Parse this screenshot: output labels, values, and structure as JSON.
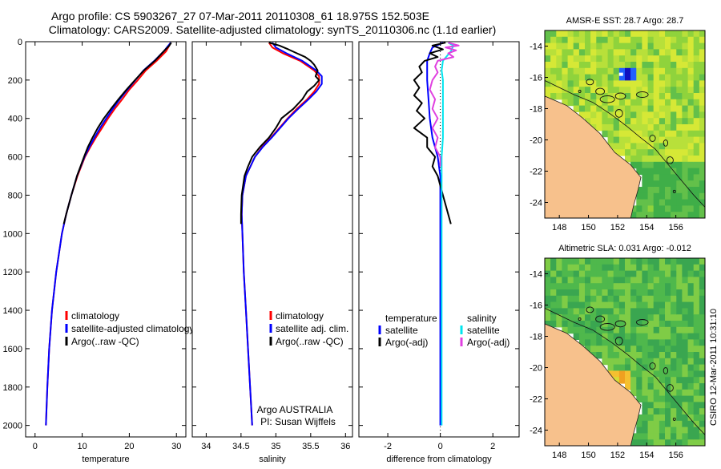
{
  "header": {
    "line1": "Argo profile: CS 5903267_27 07-Mar-2011 20110308_61 18.975S 152.503E",
    "line2": "Climatology: CARS2009. Satellite-adjusted climatology: synTS_20110306.nc (1.1d earlier)"
  },
  "credit": "CSIRO 12-Mar-2011 10:31:10",
  "colors": {
    "climatology": "#ff0000",
    "satellite": "#0000ff",
    "argo": "#000000",
    "sat_sal": "#00e5ee",
    "argo_adj_sal": "#e040e0",
    "land": "#f7c18c"
  },
  "chart_data": [
    {
      "type": "line",
      "id": "temperature-profile",
      "xlabel": "temperature",
      "ylabel": "",
      "xlim": [
        -2,
        32
      ],
      "ylim": [
        2060,
        0
      ],
      "xticks": [
        0,
        10,
        20,
        30
      ],
      "yticks": [
        0,
        200,
        400,
        600,
        800,
        1000,
        1200,
        1400,
        1600,
        1800,
        2000
      ],
      "legend": [
        "climatology",
        "satellite-adjusted climatology",
        "Argo(..raw -QC)"
      ],
      "series": [
        {
          "name": "climatology",
          "color": "#ff0000",
          "pressure": [
            5,
            20,
            50,
            100,
            150,
            200,
            250,
            300,
            350,
            400,
            450,
            500,
            550,
            600,
            700,
            800,
            900,
            1000,
            1200,
            1400,
            1600,
            1800,
            2000
          ],
          "values": [
            28.7,
            28.5,
            27.8,
            25.8,
            23.5,
            21.8,
            20.0,
            18.5,
            16.9,
            15.5,
            14.2,
            12.9,
            11.7,
            10.6,
            9.0,
            7.7,
            6.6,
            5.7,
            4.5,
            3.6,
            3.0,
            2.6,
            2.3
          ]
        },
        {
          "name": "satellite-adjusted climatology",
          "color": "#0000ff",
          "pressure": [
            5,
            20,
            50,
            100,
            150,
            200,
            250,
            300,
            350,
            400,
            450,
            500,
            550,
            600,
            700,
            800,
            900,
            1000,
            1200,
            1400,
            1600,
            1800,
            2000
          ],
          "values": [
            28.8,
            28.3,
            27.3,
            25.3,
            23.0,
            21.3,
            19.6,
            18.0,
            16.5,
            15.1,
            13.8,
            12.6,
            11.5,
            10.5,
            8.9,
            7.7,
            6.6,
            5.7,
            4.5,
            3.6,
            3.0,
            2.6,
            2.3
          ]
        },
        {
          "name": "Argo(..raw -QC)",
          "color": "#000000",
          "pressure": [
            5,
            20,
            50,
            100,
            150,
            200,
            250,
            300,
            350,
            400,
            450,
            500,
            550,
            600,
            700,
            800,
            900,
            950
          ],
          "values": [
            28.9,
            28.5,
            27.3,
            25.4,
            23.1,
            21.2,
            19.4,
            17.7,
            16.1,
            14.6,
            13.3,
            12.2,
            11.2,
            10.4,
            8.9,
            7.7,
            6.6,
            6.1
          ]
        }
      ]
    },
    {
      "type": "line",
      "id": "salinity-profile",
      "xlabel": "salinity",
      "ylabel": "",
      "xlim": [
        33.8,
        36.1
      ],
      "ylim": [
        2060,
        0
      ],
      "xticks": [
        34,
        34.5,
        35,
        35.5,
        36
      ],
      "legend": [
        "climatology",
        "satellite adj. clim.",
        "Argo(..raw -QC)"
      ],
      "annotation": [
        "Argo AUSTRALIA",
        "PI: Susan Wijffels"
      ],
      "series": [
        {
          "name": "climatology",
          "color": "#ff0000",
          "pressure": [
            5,
            30,
            60,
            100,
            150,
            180,
            220,
            260,
            300,
            350,
            400,
            450,
            500,
            550,
            600,
            700,
            800,
            900,
            1000,
            1200,
            1400,
            1600,
            1800,
            2000
          ],
          "values": [
            34.9,
            34.95,
            35.1,
            35.35,
            35.55,
            35.62,
            35.62,
            35.55,
            35.45,
            35.3,
            35.17,
            35.05,
            34.93,
            34.8,
            34.7,
            34.57,
            34.52,
            34.51,
            34.52,
            34.54,
            34.57,
            34.6,
            34.63,
            34.66
          ]
        },
        {
          "name": "satellite adj. clim.",
          "color": "#0000ff",
          "pressure": [
            5,
            30,
            60,
            100,
            150,
            180,
            220,
            260,
            300,
            350,
            400,
            450,
            500,
            550,
            600,
            700,
            800,
            900,
            1000,
            1200,
            1400,
            1600,
            1800,
            2000
          ],
          "values": [
            34.95,
            35.0,
            35.15,
            35.38,
            35.58,
            35.66,
            35.66,
            35.58,
            35.47,
            35.32,
            35.18,
            35.06,
            34.94,
            34.81,
            34.7,
            34.57,
            34.52,
            34.51,
            34.52,
            34.54,
            34.57,
            34.6,
            34.63,
            34.66
          ]
        },
        {
          "name": "Argo(..raw -QC)",
          "color": "#000000",
          "pressure": [
            5,
            20,
            40,
            60,
            80,
            100,
            120,
            150,
            180,
            200,
            230,
            260,
            300,
            350,
            400,
            450,
            500,
            550,
            600,
            650,
            700,
            800,
            900,
            950
          ],
          "values": [
            34.9,
            35.05,
            35.18,
            35.3,
            35.42,
            35.5,
            35.55,
            35.6,
            35.57,
            35.62,
            35.55,
            35.45,
            35.38,
            35.25,
            35.08,
            35.0,
            34.9,
            34.77,
            34.66,
            34.6,
            34.55,
            34.51,
            34.5,
            34.5
          ]
        }
      ]
    },
    {
      "type": "line",
      "id": "difference-profile",
      "xlabel": "difference from climatology",
      "ylabel": "",
      "xlim": [
        -3.1,
        3.0
      ],
      "ylim": [
        2060,
        0
      ],
      "xticks": [
        -2,
        0,
        2
      ],
      "legend_titles": [
        "temperature",
        "salinity"
      ],
      "legend": [
        "satellite",
        "Argo(-adj)",
        "satellite",
        "Argo(-adj)"
      ],
      "series": [
        {
          "name": "temperature satellite",
          "color": "#0000ff",
          "pressure": [
            5,
            30,
            60,
            100,
            150,
            200,
            300,
            400,
            500,
            600,
            700,
            800,
            900,
            1000,
            1200,
            1600,
            2000
          ],
          "values": [
            0.1,
            -0.3,
            -0.4,
            -0.5,
            -0.5,
            -0.5,
            -0.45,
            -0.4,
            -0.3,
            -0.1,
            0,
            0,
            0,
            0,
            0,
            0,
            0
          ]
        },
        {
          "name": "temperature Argo(-adj)",
          "color": "#000000",
          "pressure": [
            5,
            20,
            40,
            60,
            80,
            100,
            130,
            160,
            200,
            240,
            280,
            320,
            360,
            400,
            450,
            500,
            550,
            600,
            650,
            700,
            750,
            800,
            850,
            900,
            950
          ],
          "values": [
            0.2,
            -0.3,
            0.1,
            -0.4,
            -0.1,
            -0.6,
            -0.8,
            -0.7,
            -1.0,
            -0.8,
            -1.0,
            -0.7,
            -0.9,
            -0.6,
            -1.0,
            -0.5,
            -0.5,
            -0.2,
            -0.3,
            -0.1,
            0,
            0.1,
            0.2,
            0.3,
            0.4
          ]
        },
        {
          "name": "salinity satellite",
          "color": "#00e5ee",
          "pressure": [
            5,
            20,
            50,
            100,
            150,
            200,
            300,
            400,
            500,
            600,
            700,
            800,
            900,
            1000,
            1200,
            1600,
            2000
          ],
          "values": [
            0.3,
            0.5,
            0.4,
            0.1,
            0.05,
            0.1,
            0.1,
            0.1,
            0.1,
            0.05,
            0.05,
            0.05,
            0.05,
            0.05,
            0.05,
            0.05,
            0.05
          ]
        },
        {
          "name": "salinity Argo(-adj)",
          "color": "#e040e0",
          "pressure": [
            5,
            20,
            30,
            45,
            60,
            80,
            100,
            130,
            160,
            200,
            250,
            300,
            350,
            400,
            450,
            500,
            550,
            600,
            650
          ],
          "values": [
            0.3,
            0.7,
            0.2,
            0.6,
            0.3,
            0.5,
            -0.1,
            -0.2,
            -0.1,
            -0.3,
            -0.4,
            -0.2,
            -0.3,
            -0.1,
            -0.3,
            -0.1,
            -0.2,
            0,
            0
          ]
        }
      ]
    },
    {
      "type": "heatmap",
      "id": "sst-map",
      "title": "AMSR-E SST: 28.7 Argo: 28.7",
      "xlim": [
        147,
        158
      ],
      "ylim": [
        -25,
        -13
      ],
      "xticks": [
        148,
        150,
        152,
        154,
        156
      ],
      "yticks": [
        -14,
        -16,
        -18,
        -20,
        -22,
        -24
      ]
    },
    {
      "type": "heatmap",
      "id": "sla-map",
      "title": "Altimetric SLA: 0.031 Argo: -0.012",
      "xlim": [
        147,
        158
      ],
      "ylim": [
        -25,
        -13
      ],
      "xticks": [
        148,
        150,
        152,
        154,
        156
      ],
      "yticks": [
        -14,
        -16,
        -18,
        -20,
        -22,
        -24
      ]
    }
  ]
}
